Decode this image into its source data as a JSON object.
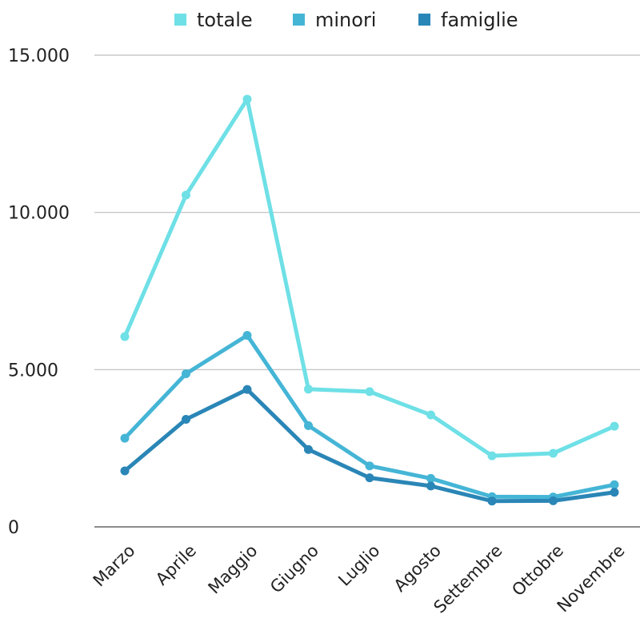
{
  "chart_data": {
    "type": "line",
    "title": "",
    "xlabel": "",
    "ylabel": "",
    "categories": [
      "Marzo",
      "Aprile",
      "Maggio",
      "Giugno",
      "Luglio",
      "Agosto",
      "Settembre",
      "Ottobre",
      "Novembre"
    ],
    "series": [
      {
        "name": "totale",
        "color": "#6ee0e6",
        "values": [
          6050,
          10550,
          13600,
          4380,
          4300,
          3560,
          2260,
          2340,
          3200
        ]
      },
      {
        "name": "minori",
        "color": "#45b5d6",
        "values": [
          2820,
          4870,
          6090,
          3220,
          1940,
          1540,
          960,
          950,
          1340
        ]
      },
      {
        "name": "famiglie",
        "color": "#2a86b6",
        "values": [
          1780,
          3420,
          4370,
          2460,
          1560,
          1300,
          820,
          830,
          1100
        ]
      }
    ],
    "ylim": [
      0,
      15000
    ],
    "yticks": [
      0,
      5000,
      10000,
      15000
    ],
    "ytick_labels": [
      "0",
      "5.000",
      "10.000",
      "15.000"
    ],
    "grid": true,
    "legend_position": "top-center"
  }
}
